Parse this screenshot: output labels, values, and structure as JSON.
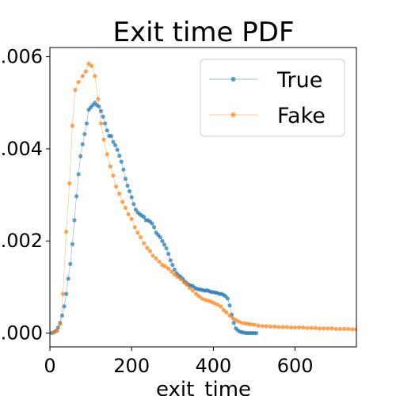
{
  "chart_data": {
    "type": "line",
    "title": "Exit time PDF",
    "xlabel": "exit_time",
    "ylabel": "",
    "xlim": [
      0,
      750
    ],
    "ylim": [
      -0.0003,
      0.0062
    ],
    "x_ticks": [
      0,
      200,
      400,
      600
    ],
    "x_tick_labels": [
      "0",
      "200",
      "400",
      "600"
    ],
    "y_ticks": [
      0.0,
      0.002,
      0.004,
      0.006
    ],
    "y_tick_labels": [
      ".000",
      ".002",
      ".004",
      ".006"
    ],
    "grid": false,
    "legend_position": "top-right",
    "series": [
      {
        "name": "True",
        "color": "#1f77b4",
        "marker": "circle",
        "x": [
          5,
          10,
          15,
          20,
          25,
          30,
          35,
          40,
          45,
          50,
          55,
          60,
          65,
          70,
          75,
          80,
          85,
          90,
          95,
          100,
          105,
          110,
          115,
          120,
          125,
          130,
          135,
          140,
          145,
          150,
          155,
          160,
          165,
          170,
          175,
          180,
          185,
          190,
          195,
          200,
          205,
          210,
          215,
          220,
          225,
          230,
          235,
          240,
          245,
          250,
          255,
          260,
          265,
          270,
          275,
          280,
          285,
          290,
          295,
          300,
          305,
          310,
          315,
          320,
          325,
          330,
          335,
          340,
          345,
          350,
          355,
          360,
          365,
          370,
          375,
          380,
          385,
          390,
          395,
          400,
          405,
          410,
          415,
          420,
          425,
          430,
          435,
          440,
          445,
          450,
          455,
          460,
          465,
          470,
          475,
          480,
          485,
          490,
          495,
          500,
          505
        ],
        "values": [
          0.0,
          2e-05,
          5e-05,
          0.00012,
          0.00022,
          0.00038,
          0.00058,
          0.00085,
          0.00118,
          0.0015,
          0.00193,
          0.00245,
          0.00297,
          0.00345,
          0.00384,
          0.0041,
          0.00432,
          0.00455,
          0.00485,
          0.0049,
          0.00495,
          0.005,
          0.00495,
          0.00492,
          0.00482,
          0.0047,
          0.00455,
          0.0044,
          0.00428,
          0.00428,
          0.00415,
          0.00408,
          0.00398,
          0.00385,
          0.00372,
          0.00355,
          0.00335,
          0.0032,
          0.00308,
          0.00295,
          0.0028,
          0.00268,
          0.00262,
          0.00258,
          0.00255,
          0.00252,
          0.00245,
          0.00245,
          0.00242,
          0.00238,
          0.0023,
          0.00218,
          0.00213,
          0.00208,
          0.002,
          0.00192,
          0.00184,
          0.00172,
          0.00158,
          0.00148,
          0.00138,
          0.0013,
          0.00125,
          0.00122,
          0.00118,
          0.00112,
          0.00108,
          0.00105,
          0.00103,
          0.00102,
          0.00098,
          0.00096,
          0.00095,
          0.00094,
          0.00093,
          0.00092,
          0.00093,
          0.00091,
          0.00089,
          0.00089,
          0.00088,
          0.00087,
          0.00085,
          0.00085,
          0.00083,
          0.0008,
          0.00075,
          0.0006,
          0.0004,
          0.00022,
          0.0001,
          6e-05,
          3e-05,
          2e-05,
          1e-05,
          0.0,
          0.0,
          0.0,
          0.0,
          0.0,
          0.0
        ]
      },
      {
        "name": "Fake",
        "color": "#ff7f0e",
        "marker": "circle",
        "x": [
          10,
          18,
          25,
          32,
          40,
          48,
          55,
          62,
          70,
          80,
          88,
          95,
          102,
          110,
          118,
          125,
          132,
          140,
          148,
          155,
          162,
          170,
          178,
          185,
          192,
          200,
          208,
          215,
          222,
          230,
          238,
          245,
          252,
          260,
          268,
          275,
          282,
          290,
          298,
          305,
          312,
          320,
          328,
          335,
          342,
          350,
          358,
          365,
          372,
          380,
          388,
          395,
          402,
          410,
          418,
          425,
          432,
          440,
          448,
          455,
          462,
          470,
          478,
          485,
          492,
          500,
          510,
          520,
          530,
          540,
          550,
          560,
          570,
          580,
          590,
          600,
          610,
          620,
          630,
          640,
          650,
          660,
          670,
          680,
          690,
          700,
          710,
          720,
          730,
          740,
          750
        ],
        "values": [
          2e-05,
          5e-05,
          0.0002,
          0.00085,
          0.0022,
          0.00325,
          0.0045,
          0.00528,
          0.00545,
          0.00558,
          0.00568,
          0.00585,
          0.0058,
          0.00558,
          0.00508,
          0.00455,
          0.0042,
          0.00388,
          0.00362,
          0.00342,
          0.00318,
          0.00303,
          0.00285,
          0.00272,
          0.00258,
          0.00248,
          0.0023,
          0.00218,
          0.00208,
          0.00195,
          0.00185,
          0.00178,
          0.00168,
          0.00162,
          0.00155,
          0.00148,
          0.00145,
          0.0014,
          0.00133,
          0.00127,
          0.00122,
          0.00117,
          0.0011,
          0.00105,
          0.00098,
          0.00092,
          0.00085,
          0.0008,
          0.00075,
          0.00072,
          0.0007,
          0.00068,
          0.00065,
          0.00062,
          0.00058,
          0.0005,
          0.00045,
          0.00038,
          0.00032,
          0.00028,
          0.00025,
          0.00022,
          0.00021,
          0.0002,
          0.00019,
          0.00018,
          0.00016,
          0.00015,
          0.00015,
          0.00014,
          0.00014,
          0.00013,
          0.00013,
          0.00013,
          0.00012,
          0.00012,
          0.00012,
          0.00012,
          0.00011,
          0.00011,
          0.00011,
          0.0001,
          0.0001,
          0.0001,
          0.0001,
          9e-05,
          9e-05,
          9e-05,
          9e-05,
          8e-05,
          8e-05
        ]
      }
    ]
  }
}
